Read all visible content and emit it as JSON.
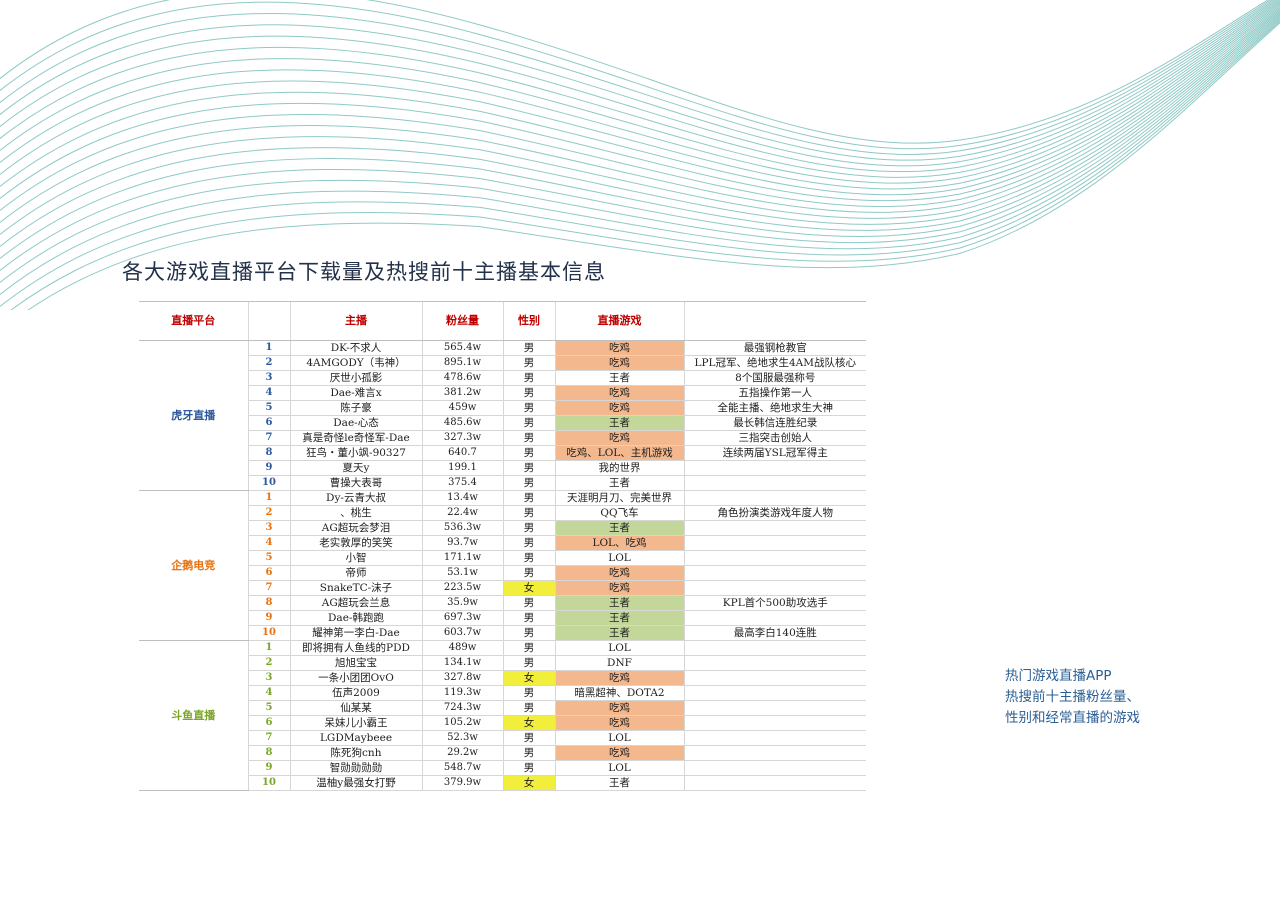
{
  "title": "各大游戏直播平台下载量及热搜前十主播基本信息",
  "side_note": [
    "热门游戏直播APP",
    "热搜前十主播粉丝量、",
    "性别和经常直播的游戏"
  ],
  "colors": {
    "wave_lines": "#8fc9c6",
    "title": "#23324a",
    "side_note": "#2a5f94",
    "header_text": "#c00000",
    "game_chiji": "#f4b88e",
    "game_wangzhe": "#c4d79b",
    "female": "#f1ee3c",
    "huya": "#2e5a9c",
    "qq": "#e8720f",
    "douyu": "#7aa529"
  },
  "table": {
    "headers": [
      "直播平台",
      "",
      "主播",
      "粉丝量",
      "性别",
      "直播游戏",
      ""
    ],
    "groups": [
      {
        "platform": "虎牙直播",
        "color": "blue",
        "rows": [
          {
            "rank": "1",
            "name": "DK-不求人",
            "fans": "565.4w",
            "gender": "男",
            "game": "吃鸡",
            "game_hl": "orange",
            "note": "最强钢枪教官"
          },
          {
            "rank": "2",
            "name": "4AMGODY（韦神）",
            "fans": "895.1w",
            "gender": "男",
            "game": "吃鸡",
            "game_hl": "orange",
            "note": "LPL冠军、绝地求生4AM战队核心"
          },
          {
            "rank": "3",
            "name": "厌世小孤影",
            "fans": "478.6w",
            "gender": "男",
            "game": "王者",
            "game_hl": "",
            "note": "8个国服最强称号"
          },
          {
            "rank": "4",
            "name": "Dae-难言x",
            "fans": "381.2w",
            "gender": "男",
            "game": "吃鸡",
            "game_hl": "orange",
            "note": "五指操作第一人"
          },
          {
            "rank": "5",
            "name": "陈子豪",
            "fans": "459w",
            "gender": "男",
            "game": "吃鸡",
            "game_hl": "orange",
            "note": "全能主播、绝地求生大神"
          },
          {
            "rank": "6",
            "name": "Dae-心态",
            "fans": "485.6w",
            "gender": "男",
            "game": "王者",
            "game_hl": "green",
            "note": "最长韩信连胜纪录"
          },
          {
            "rank": "7",
            "name": "真是奇怪le奇怪军-Dae",
            "fans": "327.3w",
            "gender": "男",
            "game": "吃鸡",
            "game_hl": "orange",
            "note": "三指突击创始人"
          },
          {
            "rank": "8",
            "name": "狂鸟・董小飒-90327",
            "fans": "640.7",
            "gender": "男",
            "game": "吃鸡、LOL、主机游戏",
            "game_hl": "orange",
            "note": "连续两届YSL冠军得主"
          },
          {
            "rank": "9",
            "name": "夏天y",
            "fans": "199.1",
            "gender": "男",
            "game": "我的世界",
            "game_hl": "",
            "note": ""
          },
          {
            "rank": "10",
            "name": "曹操大表哥",
            "fans": "375.4",
            "gender": "男",
            "game": "王者",
            "game_hl": "",
            "note": ""
          }
        ]
      },
      {
        "platform": "企鹅电竞",
        "color": "orange",
        "rows": [
          {
            "rank": "1",
            "name": "Dy-云青大叔",
            "fans": "13.4w",
            "gender": "男",
            "game": "天涯明月刀、完美世界",
            "game_hl": "",
            "note": ""
          },
          {
            "rank": "2",
            "name": "、桃生",
            "fans": "22.4w",
            "gender": "男",
            "game": "QQ飞车",
            "game_hl": "",
            "note": "角色扮演类游戏年度人物"
          },
          {
            "rank": "3",
            "name": "AG超玩会梦泪",
            "fans": "536.3w",
            "gender": "男",
            "game": "王者",
            "game_hl": "green",
            "note": ""
          },
          {
            "rank": "4",
            "name": "老实敦厚的笑笑",
            "fans": "93.7w",
            "gender": "男",
            "game": "LOL、吃鸡",
            "game_hl": "orange",
            "note": ""
          },
          {
            "rank": "5",
            "name": "小智",
            "fans": "171.1w",
            "gender": "男",
            "game": "LOL",
            "game_hl": "",
            "note": ""
          },
          {
            "rank": "6",
            "name": "帝师",
            "fans": "53.1w",
            "gender": "男",
            "game": "吃鸡",
            "game_hl": "orange",
            "note": ""
          },
          {
            "rank": "7",
            "name": "SnakeTC-沫子",
            "fans": "223.5w",
            "gender": "女",
            "game": "吃鸡",
            "game_hl": "orange",
            "note": ""
          },
          {
            "rank": "8",
            "name": "AG超玩会兰息",
            "fans": "35.9w",
            "gender": "男",
            "game": "王者",
            "game_hl": "green",
            "note": "KPL首个500助攻选手"
          },
          {
            "rank": "9",
            "name": "Dae-韩跑跑",
            "fans": "697.3w",
            "gender": "男",
            "game": "王者",
            "game_hl": "green",
            "note": ""
          },
          {
            "rank": "10",
            "name": "耀神第一李白-Dae",
            "fans": "603.7w",
            "gender": "男",
            "game": "王者",
            "game_hl": "green",
            "note": "最高李白140连胜"
          }
        ]
      },
      {
        "platform": "斗鱼直播",
        "color": "green",
        "rows": [
          {
            "rank": "1",
            "name": "即将拥有人鱼线的PDD",
            "fans": "489w",
            "gender": "男",
            "game": "LOL",
            "game_hl": "",
            "note": ""
          },
          {
            "rank": "2",
            "name": "旭旭宝宝",
            "fans": "134.1w",
            "gender": "男",
            "game": "DNF",
            "game_hl": "",
            "note": ""
          },
          {
            "rank": "3",
            "name": "一条小团团OvO",
            "fans": "327.8w",
            "gender": "女",
            "game": "吃鸡",
            "game_hl": "orange",
            "note": ""
          },
          {
            "rank": "4",
            "name": "伍声2009",
            "fans": "119.3w",
            "gender": "男",
            "game": "暗黑超神、DOTA2",
            "game_hl": "",
            "note": ""
          },
          {
            "rank": "5",
            "name": "仙某某",
            "fans": "724.3w",
            "gender": "男",
            "game": "吃鸡",
            "game_hl": "orange",
            "note": ""
          },
          {
            "rank": "6",
            "name": "呆妹儿小霸王",
            "fans": "105.2w",
            "gender": "女",
            "game": "吃鸡",
            "game_hl": "orange",
            "note": ""
          },
          {
            "rank": "7",
            "name": "LGDMaybeee",
            "fans": "52.3w",
            "gender": "男",
            "game": "LOL",
            "game_hl": "",
            "note": ""
          },
          {
            "rank": "8",
            "name": "陈死狗cnh",
            "fans": "29.2w",
            "gender": "男",
            "game": "吃鸡",
            "game_hl": "orange",
            "note": ""
          },
          {
            "rank": "9",
            "name": "智勋勋勋勋",
            "fans": "548.7w",
            "gender": "男",
            "game": "LOL",
            "game_hl": "",
            "note": ""
          },
          {
            "rank": "10",
            "name": "温柚y最强女打野",
            "fans": "379.9w",
            "gender": "女",
            "game": "王者",
            "game_hl": "",
            "note": ""
          }
        ]
      }
    ]
  }
}
